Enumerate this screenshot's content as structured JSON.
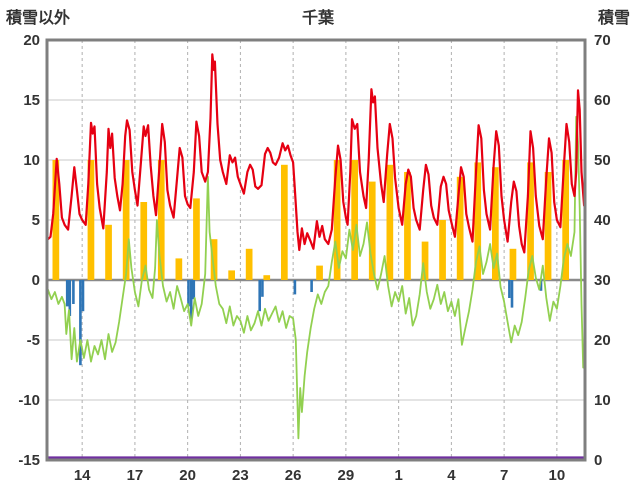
{
  "chart_data": {
    "type": "line",
    "title": "千葉",
    "x_axis": {
      "min": 0,
      "max": 30.6,
      "labels": [
        "14",
        "17",
        "20",
        "23",
        "26",
        "29",
        "1",
        "4",
        "7",
        "10"
      ],
      "label_positions": [
        2,
        5,
        8,
        11,
        14,
        17,
        20,
        23,
        26,
        29
      ]
    },
    "left_axis": {
      "label": "積雪以外",
      "min": -15,
      "max": 20,
      "tick_step": 5,
      "ticks": [
        20,
        15,
        10,
        5,
        0,
        -5,
        -10,
        -15
      ]
    },
    "right_axis": {
      "label": "積雪",
      "min": 0,
      "max": 70,
      "tick_step": 10,
      "ticks": [
        70,
        60,
        50,
        40,
        30,
        20,
        10,
        0
      ]
    },
    "grid": {
      "h_color": "#c9c9c9",
      "v_color": "#b0b0b0",
      "zero_color": "#8a8a8a",
      "border_color": "#7f7f7f"
    },
    "series": [
      {
        "name": "orange-bars",
        "type": "bar",
        "color": "#ffc000",
        "bar_width": 0.38,
        "x": [
          0.5,
          2.5,
          3.5,
          4.5,
          5.5,
          6.5,
          7.5,
          8.5,
          9.5,
          10.5,
          11.5,
          12.5,
          13.5,
          15.5,
          16.5,
          17.5,
          18.5,
          19.5,
          20.5,
          21.5,
          22.5,
          23.5,
          24.5,
          25.5,
          26.5,
          27.5,
          28.5,
          29.5
        ],
        "y": [
          10,
          10,
          4.6,
          10,
          6.5,
          10,
          1.8,
          6.8,
          3.4,
          0.8,
          2.6,
          0.4,
          9.6,
          1.2,
          10,
          10,
          8.2,
          9.6,
          9.0,
          3.2,
          5.0,
          8.6,
          9.8,
          9.4,
          2.6,
          9.8,
          9.0,
          10
        ]
      },
      {
        "name": "blue-bars",
        "type": "bar",
        "color": "#2e75b6",
        "bar_width": 0.15,
        "x": [
          1.15,
          1.3,
          1.5,
          1.9,
          2.05,
          8.05,
          8.2,
          8.35,
          12.1,
          12.25,
          14.1,
          15.05,
          26.3,
          26.45,
          28.1
        ],
        "y": [
          -2.2,
          -3.0,
          -2.0,
          -7.1,
          -2.6,
          -2.2,
          -3.3,
          -1.6,
          -2.6,
          -1.4,
          -1.2,
          -1.0,
          -1.5,
          -2.3,
          -0.9
        ]
      },
      {
        "name": "purple-line",
        "type": "line",
        "color": "#7030a0",
        "width": 2.2,
        "axis": "right",
        "dy": -2.5,
        "x": [
          0,
          30.6
        ],
        "y": [
          0,
          0
        ]
      },
      {
        "name": "green-line",
        "type": "line",
        "color": "#92d050",
        "width": 1.8,
        "x": [
          0.05,
          0.25,
          0.45,
          0.65,
          0.85,
          1.0,
          1.1,
          1.25,
          1.4,
          1.55,
          1.7,
          1.9,
          2.1,
          2.3,
          2.5,
          2.7,
          2.9,
          3.1,
          3.3,
          3.5,
          3.7,
          3.9,
          4.1,
          4.3,
          4.5,
          4.65,
          4.8,
          5.0,
          5.2,
          5.4,
          5.6,
          5.8,
          6.0,
          6.15,
          6.25,
          6.4,
          6.6,
          6.8,
          7.0,
          7.2,
          7.4,
          7.6,
          7.8,
          8.0,
          8.2,
          8.4,
          8.6,
          8.8,
          9.0,
          9.15,
          9.25,
          9.4,
          9.6,
          9.8,
          10.0,
          10.2,
          10.4,
          10.6,
          10.8,
          11.0,
          11.2,
          11.4,
          11.6,
          11.8,
          12.0,
          12.2,
          12.4,
          12.6,
          12.8,
          13.0,
          13.2,
          13.4,
          13.6,
          13.8,
          14.0,
          14.15,
          14.3,
          14.4,
          14.5,
          14.65,
          14.8,
          15.0,
          15.2,
          15.4,
          15.6,
          15.8,
          16.0,
          16.2,
          16.4,
          16.6,
          16.8,
          17.0,
          17.2,
          17.4,
          17.6,
          17.8,
          18.0,
          18.2,
          18.4,
          18.6,
          18.8,
          19.0,
          19.2,
          19.4,
          19.6,
          19.8,
          20.0,
          20.2,
          20.4,
          20.6,
          20.8,
          21.0,
          21.2,
          21.4,
          21.6,
          21.8,
          22.0,
          22.2,
          22.4,
          22.6,
          22.8,
          23.0,
          23.2,
          23.4,
          23.6,
          23.8,
          24.0,
          24.2,
          24.4,
          24.6,
          24.8,
          25.0,
          25.2,
          25.4,
          25.6,
          25.8,
          26.0,
          26.2,
          26.4,
          26.6,
          26.8,
          27.0,
          27.2,
          27.4,
          27.6,
          27.8,
          28.0,
          28.2,
          28.4,
          28.6,
          28.8,
          29.0,
          29.2,
          29.4,
          29.6,
          29.8,
          30.0,
          30.1,
          30.2,
          30.3,
          30.4,
          30.5
        ],
        "y": [
          -0.8,
          -1.6,
          -1.0,
          -2.0,
          -1.4,
          -2.0,
          -4.5,
          -2.5,
          -6.6,
          -4.0,
          -6.8,
          -5.0,
          -6.5,
          -5.0,
          -6.8,
          -5.5,
          -6.2,
          -5.0,
          -6.6,
          -4.5,
          -6.0,
          -5.2,
          -3.5,
          -1.5,
          0.5,
          3.4,
          1.0,
          -1.0,
          -2.2,
          0.0,
          1.2,
          -0.8,
          -1.5,
          1.0,
          5.0,
          2.0,
          -0.5,
          -1.8,
          -1.0,
          -2.4,
          -0.5,
          -1.5,
          -2.6,
          -2.0,
          -3.8,
          -1.5,
          -3.0,
          -2.0,
          0.5,
          8.6,
          4.0,
          2.0,
          -0.5,
          -2.0,
          -2.4,
          -3.6,
          -2.2,
          -3.8,
          -3.0,
          -3.4,
          -4.4,
          -3.0,
          -4.2,
          -3.6,
          -2.6,
          -3.8,
          -2.4,
          -3.4,
          -2.8,
          -2.2,
          -3.5,
          -2.6,
          -4.0,
          -3.0,
          -3.2,
          -5.0,
          -13.2,
          -9.0,
          -11.0,
          -8.0,
          -6.0,
          -4.0,
          -2.4,
          -1.2,
          -2.0,
          -1.0,
          -0.5,
          1.5,
          3.2,
          1.0,
          2.4,
          1.8,
          4.2,
          2.5,
          4.6,
          2.0,
          3.0,
          4.8,
          2.2,
          0.5,
          -0.8,
          0.5,
          2.0,
          -0.5,
          -2.2,
          -1.0,
          -1.8,
          -0.5,
          -2.8,
          -1.5,
          -3.8,
          -3.0,
          -1.2,
          1.4,
          -1.0,
          -2.4,
          -1.6,
          -0.4,
          -2.0,
          -1.0,
          -2.6,
          -1.8,
          -3.0,
          -1.6,
          -5.4,
          -4.0,
          -2.6,
          -0.8,
          1.5,
          2.8,
          0.5,
          1.5,
          3.0,
          1.0,
          2.2,
          -0.6,
          -1.8,
          -3.5,
          -5.2,
          -3.8,
          -4.6,
          -3.5,
          -1.5,
          0.8,
          2.0,
          0.2,
          -0.8,
          1.2,
          -1.5,
          -3.4,
          -1.8,
          -2.4,
          -0.5,
          1.8,
          3.0,
          2.0,
          4.0,
          13.6,
          11.5,
          6.0,
          -2.0,
          -7.3
        ]
      },
      {
        "name": "red-line",
        "type": "line",
        "color": "#e60012",
        "width": 2.2,
        "x": [
          0.05,
          0.2,
          0.35,
          0.55,
          0.7,
          0.85,
          1.0,
          1.2,
          1.4,
          1.55,
          1.7,
          1.85,
          2.0,
          2.2,
          2.35,
          2.5,
          2.6,
          2.7,
          2.85,
          3.0,
          3.2,
          3.4,
          3.5,
          3.6,
          3.7,
          3.85,
          4.0,
          4.15,
          4.3,
          4.45,
          4.55,
          4.7,
          4.85,
          5.0,
          5.15,
          5.35,
          5.5,
          5.6,
          5.75,
          5.9,
          6.05,
          6.2,
          6.4,
          6.55,
          6.7,
          6.85,
          7.0,
          7.2,
          7.4,
          7.55,
          7.7,
          7.85,
          8.0,
          8.15,
          8.35,
          8.5,
          8.65,
          8.8,
          9.0,
          9.15,
          9.3,
          9.4,
          9.5,
          9.55,
          9.7,
          9.85,
          10.0,
          10.2,
          10.4,
          10.55,
          10.7,
          10.85,
          11.0,
          11.2,
          11.4,
          11.55,
          11.7,
          11.85,
          12.0,
          12.2,
          12.4,
          12.55,
          12.7,
          12.85,
          13.0,
          13.2,
          13.4,
          13.55,
          13.7,
          13.85,
          14.0,
          14.1,
          14.25,
          14.35,
          14.5,
          14.65,
          14.8,
          15.0,
          15.15,
          15.35,
          15.5,
          15.65,
          15.8,
          16.0,
          16.2,
          16.4,
          16.55,
          16.7,
          16.85,
          17.0,
          17.1,
          17.25,
          17.35,
          17.5,
          17.65,
          17.8,
          18.0,
          18.15,
          18.3,
          18.45,
          18.55,
          18.65,
          18.8,
          19.0,
          19.15,
          19.35,
          19.5,
          19.65,
          19.8,
          20.0,
          20.2,
          20.4,
          20.55,
          20.7,
          20.85,
          21.0,
          21.2,
          21.4,
          21.55,
          21.7,
          21.85,
          22.0,
          22.2,
          22.4,
          22.55,
          22.7,
          22.85,
          23.0,
          23.2,
          23.4,
          23.55,
          23.7,
          23.85,
          24.0,
          24.2,
          24.4,
          24.55,
          24.7,
          24.85,
          25.0,
          25.2,
          25.4,
          25.55,
          25.7,
          25.85,
          26.0,
          26.2,
          26.4,
          26.55,
          26.7,
          26.85,
          27.0,
          27.15,
          27.35,
          27.5,
          27.65,
          27.8,
          28.0,
          28.2,
          28.4,
          28.55,
          28.7,
          28.85,
          29.0,
          29.2,
          29.4,
          29.55,
          29.7,
          29.85,
          30.0,
          30.1,
          30.2,
          30.3,
          30.4,
          30.55
        ],
        "y": [
          3.4,
          3.6,
          5.5,
          10.1,
          8.0,
          5.2,
          4.6,
          4.2,
          7.0,
          9.4,
          7.5,
          5.5,
          5.0,
          4.6,
          8.0,
          13.1,
          12.2,
          12.8,
          8.0,
          6.0,
          4.3,
          9.0,
          12.6,
          11.0,
          12.2,
          8.5,
          7.0,
          5.8,
          8.0,
          12.0,
          13.3,
          12.5,
          9.0,
          7.5,
          6.2,
          10.0,
          12.8,
          12.0,
          12.9,
          9.5,
          7.0,
          5.4,
          9.5,
          13.0,
          11.5,
          7.5,
          6.2,
          5.2,
          8.5,
          11.0,
          10.2,
          7.0,
          6.3,
          6.0,
          9.0,
          13.2,
          12.0,
          9.0,
          8.2,
          9.0,
          13.5,
          18.8,
          17.5,
          18.2,
          13.0,
          10.0,
          9.0,
          8.0,
          10.4,
          9.8,
          10.2,
          8.6,
          8.0,
          7.2,
          9.0,
          9.6,
          9.2,
          7.8,
          7.6,
          7.9,
          10.5,
          11.0,
          10.6,
          9.8,
          9.6,
          10.2,
          11.4,
          10.8,
          11.2,
          10.4,
          9.8,
          7.5,
          4.0,
          2.5,
          4.3,
          3.0,
          3.9,
          3.2,
          2.6,
          4.9,
          3.6,
          4.5,
          3.4,
          3.0,
          4.2,
          8.5,
          11.2,
          10.0,
          6.5,
          5.2,
          4.6,
          9.0,
          13.4,
          12.6,
          13.0,
          9.0,
          7.0,
          6.0,
          10.0,
          15.9,
          14.8,
          15.3,
          11.0,
          8.0,
          6.5,
          10.5,
          13.0,
          11.8,
          8.5,
          6.0,
          4.6,
          8.0,
          9.2,
          8.6,
          6.0,
          5.0,
          4.2,
          7.5,
          9.6,
          8.8,
          6.2,
          5.2,
          4.6,
          7.8,
          8.6,
          8.0,
          5.8,
          4.8,
          3.6,
          7.0,
          9.4,
          8.6,
          5.5,
          4.4,
          3.2,
          9.0,
          12.9,
          11.8,
          7.5,
          5.5,
          4.2,
          9.5,
          12.4,
          11.2,
          7.0,
          5.0,
          3.2,
          6.5,
          8.2,
          7.4,
          4.5,
          3.0,
          2.3,
          7.0,
          12.4,
          11.0,
          7.0,
          4.5,
          3.4,
          8.5,
          11.8,
          10.6,
          6.5,
          5.0,
          4.4,
          9.5,
          13.0,
          11.5,
          8.0,
          7.0,
          9.0,
          15.8,
          14.2,
          9.0,
          6.2
        ]
      }
    ]
  }
}
